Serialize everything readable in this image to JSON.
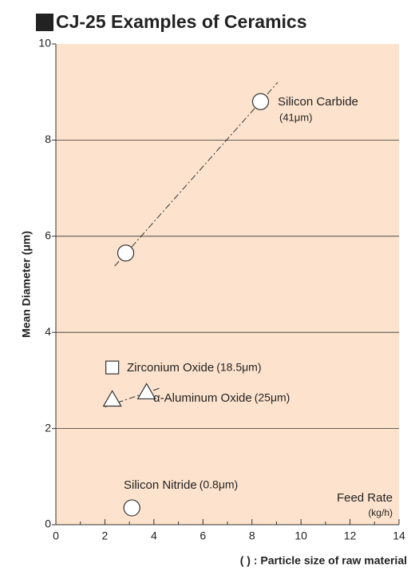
{
  "chart_data": {
    "type": "scatter",
    "title": "CJ-25 Examples of Ceramics",
    "ylabel": "Mean Diameter (μm)",
    "xlabel": "Feed Rate",
    "xunit": "(kg/h)",
    "note": "( ) : Particle size of raw material",
    "xlim": [
      0,
      14
    ],
    "ylim": [
      0,
      10
    ],
    "xticks": [
      0,
      2,
      4,
      6,
      8,
      10,
      12,
      14
    ],
    "xminorticks": [
      1,
      3,
      5,
      7,
      9,
      11,
      13
    ],
    "yticks": [
      0,
      2,
      4,
      6,
      8,
      10
    ],
    "grid": true,
    "background": "#fde3cd",
    "series": [
      {
        "name": "Silicon Carbide",
        "size_label": "(41μm)",
        "marker": "circle",
        "x": [
          8.35,
          2.85
        ],
        "y": [
          8.8,
          5.65
        ],
        "fit_x": [
          2.4,
          9.05
        ],
        "fit_y": [
          5.38,
          9.2
        ]
      },
      {
        "name": "Zirconium Oxide",
        "size_label": "(18.5μm)",
        "marker": "square",
        "x": [
          2.3
        ],
        "y": [
          3.27
        ]
      },
      {
        "name": "α-Aluminum Oxide",
        "size_label": "(25μm)",
        "marker": "triangle",
        "x": [
          2.3,
          3.7
        ],
        "y": [
          2.6,
          2.75
        ],
        "fit_x": [
          2.0,
          4.3
        ],
        "fit_y": [
          2.45,
          2.85
        ]
      },
      {
        "name": "Silicon Nitride",
        "size_label": "(0.8μm)",
        "marker": "circle",
        "x": [
          3.1
        ],
        "y": [
          0.35
        ]
      }
    ]
  }
}
